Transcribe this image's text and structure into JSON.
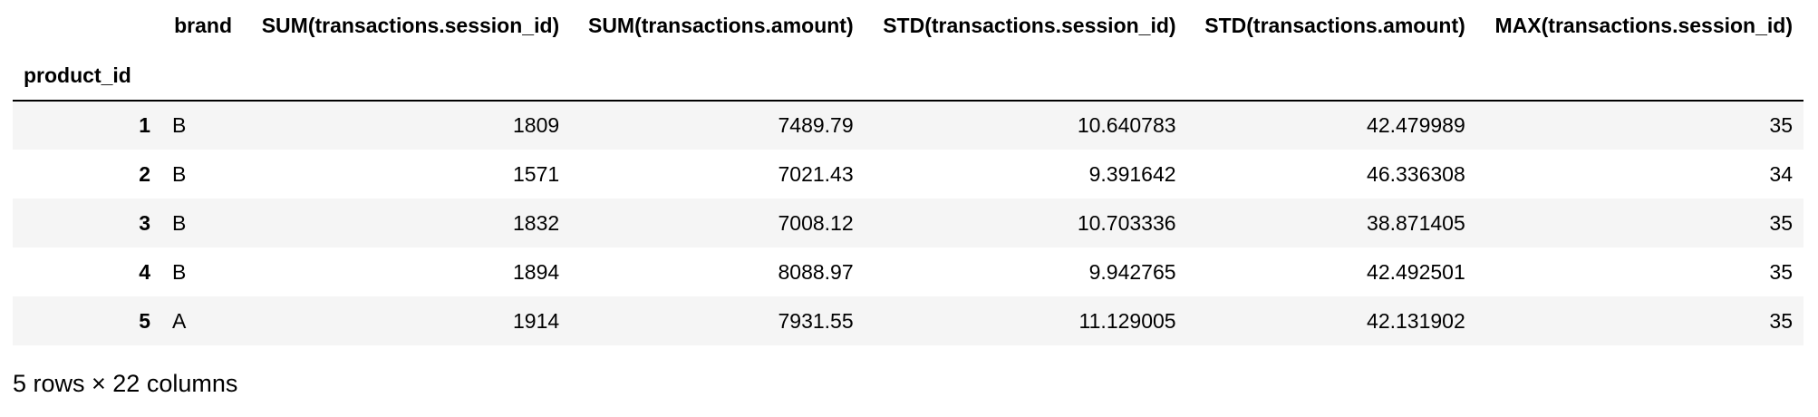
{
  "table": {
    "index_name": "product_id",
    "columns": [
      "brand",
      "SUM(transactions.session_id)",
      "SUM(transactions.amount)",
      "STD(transactions.session_id)",
      "STD(transactions.amount)",
      "MAX(transactions.session_id)"
    ],
    "rows": [
      {
        "index": "1",
        "cells": [
          "B",
          "1809",
          "7489.79",
          "10.640783",
          "42.479989",
          "35"
        ]
      },
      {
        "index": "2",
        "cells": [
          "B",
          "1571",
          "7021.43",
          "9.391642",
          "46.336308",
          "34"
        ]
      },
      {
        "index": "3",
        "cells": [
          "B",
          "1832",
          "7008.12",
          "10.703336",
          "38.871405",
          "35"
        ]
      },
      {
        "index": "4",
        "cells": [
          "B",
          "1894",
          "8088.97",
          "9.942765",
          "42.492501",
          "35"
        ]
      },
      {
        "index": "5",
        "cells": [
          "A",
          "1914",
          "7931.55",
          "11.129005",
          "42.131902",
          "35"
        ]
      }
    ]
  },
  "footer": {
    "shape_text": "5 rows × 22 columns"
  }
}
